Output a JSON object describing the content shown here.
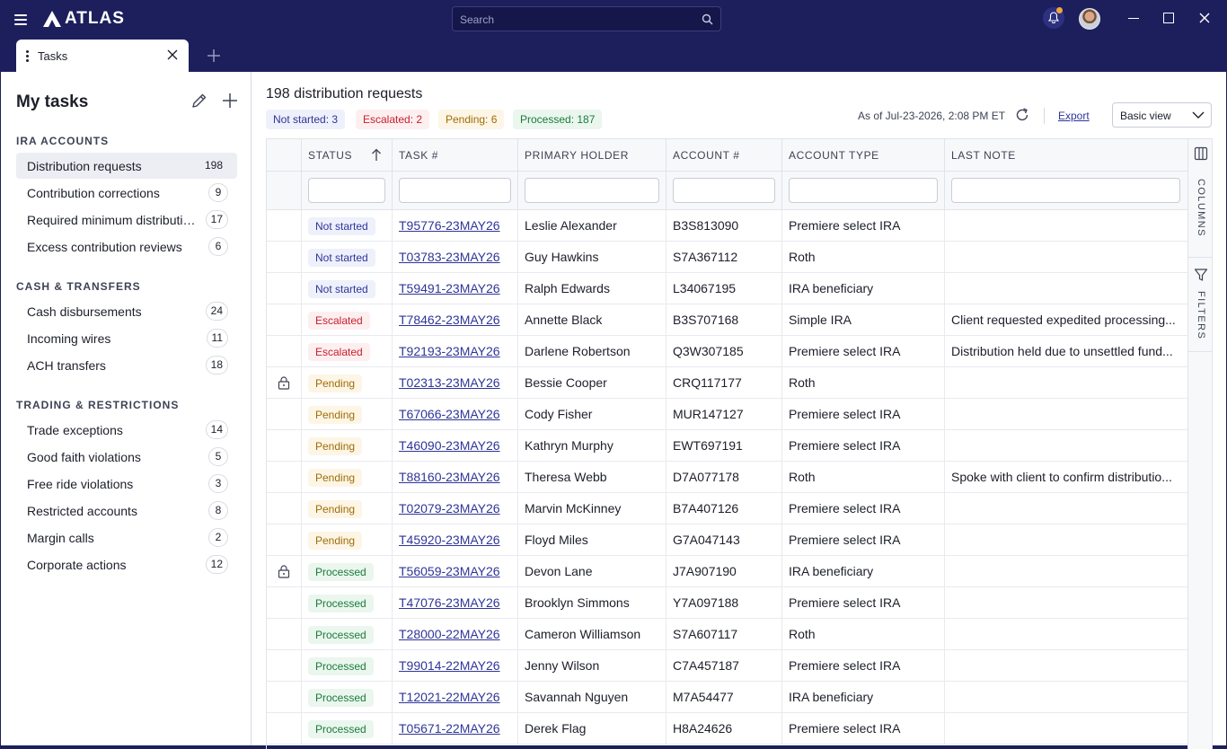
{
  "app": {
    "logo_text": "ATLAS"
  },
  "search": {
    "placeholder": "Search"
  },
  "tab": {
    "label": "Tasks"
  },
  "sidebar": {
    "title": "My tasks",
    "sections": [
      {
        "label": "IRA ACCOUNTS",
        "items": [
          {
            "label": "Distribution requests",
            "count": "198",
            "active": true
          },
          {
            "label": "Contribution corrections",
            "count": "9"
          },
          {
            "label": "Required minimum distributions",
            "count": "17"
          },
          {
            "label": "Excess contribution reviews",
            "count": "6"
          }
        ]
      },
      {
        "label": "CASH & TRANSFERS",
        "items": [
          {
            "label": "Cash disbursements",
            "count": "24"
          },
          {
            "label": "Incoming wires",
            "count": "11"
          },
          {
            "label": "ACH transfers",
            "count": "18"
          }
        ]
      },
      {
        "label": "TRADING & RESTRICTIONS",
        "items": [
          {
            "label": "Trade exceptions",
            "count": "14"
          },
          {
            "label": "Good faith violations",
            "count": "5"
          },
          {
            "label": "Free ride violations",
            "count": "3"
          },
          {
            "label": "Restricted accounts",
            "count": "8"
          },
          {
            "label": "Margin calls",
            "count": "2"
          },
          {
            "label": "Corporate actions",
            "count": "12"
          }
        ]
      }
    ]
  },
  "main": {
    "title": "198 distribution requests",
    "pills": {
      "not_started": "Not started: 3",
      "escalated": "Escalated: 2",
      "pending": "Pending: 6",
      "processed": "Processed: 187"
    },
    "as_of": "As of Jul-23-2026, 2:08 PM ET",
    "export_label": "Export",
    "view_select": "Basic view",
    "columns": [
      "STATUS",
      "TASK #",
      "PRIMARY HOLDER",
      "ACCOUNT #",
      "ACCOUNT TYPE",
      "LAST NOTE"
    ],
    "side_panel": {
      "columns_label": "COLUMNS",
      "filters_label": "FILTERS"
    },
    "rows": [
      {
        "locked": false,
        "status": "Not started",
        "kind": "ns",
        "task": "T95776-23MAY26",
        "holder": "Leslie Alexander",
        "account": "B3S813090",
        "type": "Premiere select IRA",
        "note": ""
      },
      {
        "locked": false,
        "status": "Not started",
        "kind": "ns",
        "task": "T03783-23MAY26",
        "holder": "Guy Hawkins",
        "account": "S7A367112",
        "type": "Roth",
        "note": ""
      },
      {
        "locked": false,
        "status": "Not started",
        "kind": "ns",
        "task": "T59491-23MAY26",
        "holder": "Ralph Edwards",
        "account": "L34067195",
        "type": "IRA beneficiary",
        "note": ""
      },
      {
        "locked": false,
        "status": "Escalated",
        "kind": "es",
        "task": "T78462-23MAY26",
        "holder": "Annette Black",
        "account": "B3S707168",
        "type": "Simple IRA",
        "note": "Client requested expedited processing..."
      },
      {
        "locked": false,
        "status": "Escalated",
        "kind": "es",
        "task": "T92193-23MAY26",
        "holder": "Darlene Robertson",
        "account": "Q3W307185",
        "type": "Premiere select IRA",
        "note": "Distribution held due to unsettled fund..."
      },
      {
        "locked": true,
        "status": "Pending",
        "kind": "pe",
        "task": "T02313-23MAY26",
        "holder": "Bessie Cooper",
        "account": "CRQ117177",
        "type": "Roth",
        "note": ""
      },
      {
        "locked": false,
        "status": "Pending",
        "kind": "pe",
        "task": "T67066-23MAY26",
        "holder": "Cody Fisher",
        "account": "MUR147127",
        "type": "Premiere select IRA",
        "note": ""
      },
      {
        "locked": false,
        "status": "Pending",
        "kind": "pe",
        "task": "T46090-23MAY26",
        "holder": "Kathryn Murphy",
        "account": "EWT697191",
        "type": "Premiere select IRA",
        "note": ""
      },
      {
        "locked": false,
        "status": "Pending",
        "kind": "pe",
        "task": "T88160-23MAY26",
        "holder": "Theresa Webb",
        "account": "D7A077178",
        "type": "Roth",
        "note": "Spoke with client to confirm distributio..."
      },
      {
        "locked": false,
        "status": "Pending",
        "kind": "pe",
        "task": "T02079-23MAY26",
        "holder": "Marvin McKinney",
        "account": "B7A407126",
        "type": "Premiere select IRA",
        "note": ""
      },
      {
        "locked": false,
        "status": "Pending",
        "kind": "pe",
        "task": "T45920-23MAY26",
        "holder": "Floyd Miles",
        "account": "G7A047143",
        "type": "Premiere select IRA",
        "note": ""
      },
      {
        "locked": true,
        "status": "Processed",
        "kind": "pr",
        "task": "T56059-23MAY26",
        "holder": "Devon Lane",
        "account": "J7A907190",
        "type": "IRA beneficiary",
        "note": ""
      },
      {
        "locked": false,
        "status": "Processed",
        "kind": "pr",
        "task": "T47076-23MAY26",
        "holder": "Brooklyn Simmons",
        "account": "Y7A097188",
        "type": "Premiere select IRA",
        "note": ""
      },
      {
        "locked": false,
        "status": "Processed",
        "kind": "pr",
        "task": "T28000-22MAY26",
        "holder": "Cameron Williamson",
        "account": "S7A607117",
        "type": "Roth",
        "note": ""
      },
      {
        "locked": false,
        "status": "Processed",
        "kind": "pr",
        "task": "T99014-22MAY26",
        "holder": "Jenny Wilson",
        "account": "C7A457187",
        "type": "Premiere select IRA",
        "note": ""
      },
      {
        "locked": false,
        "status": "Processed",
        "kind": "pr",
        "task": "T12021-22MAY26",
        "holder": "Savannah Nguyen",
        "account": "M7A54477",
        "type": "IRA beneficiary",
        "note": ""
      },
      {
        "locked": false,
        "status": "Processed",
        "kind": "pr",
        "task": "T05671-22MAY26",
        "holder": "Derek Flag",
        "account": "H8A24626",
        "type": "Premiere select IRA",
        "note": ""
      }
    ]
  },
  "colors": {
    "navy": "#1d1f5c",
    "link": "#2f3598",
    "notification_dot": "#f2a53c"
  }
}
